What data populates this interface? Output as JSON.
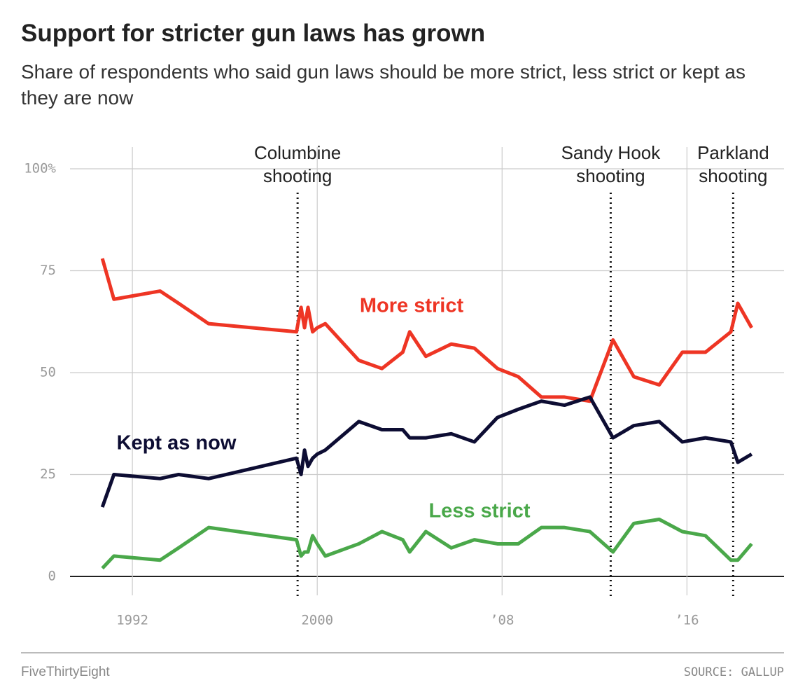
{
  "chart_data": {
    "type": "line",
    "title": "Support for stricter gun laws has grown",
    "subtitle": "Share of respondents who said gun laws should be more strict, less strict or kept as they are now",
    "x": [
      1990.7,
      1991.2,
      1993.2,
      1994.0,
      1995.3,
      1999.1,
      1999.3,
      1999.45,
      1999.6,
      1999.8,
      2000.0,
      2000.35,
      2001.8,
      2002.8,
      2003.7,
      2004.0,
      2004.7,
      2005.8,
      2006.8,
      2007.8,
      2008.7,
      2009.7,
      2010.7,
      2011.8,
      2012.8,
      2013.7,
      2014.8,
      2015.8,
      2016.8,
      2017.9,
      2018.2,
      2018.8
    ],
    "series": [
      {
        "name": "More strict",
        "color": "#ee3524",
        "values": [
          78,
          68,
          70,
          67,
          62,
          60,
          66,
          61,
          66,
          60,
          61,
          62,
          53,
          51,
          55,
          60,
          54,
          57,
          56,
          51,
          49,
          44,
          44,
          43,
          58,
          49,
          47,
          55,
          55,
          60,
          67,
          61
        ]
      },
      {
        "name": "Kept as now",
        "color": "#0d0d33",
        "values": [
          17,
          25,
          24,
          25,
          24,
          29,
          25,
          31,
          27,
          29,
          30,
          31,
          38,
          36,
          36,
          34,
          34,
          35,
          33,
          39,
          41,
          43,
          42,
          44,
          34,
          37,
          38,
          33,
          34,
          33,
          28,
          30
        ]
      },
      {
        "name": "Less strict",
        "color": "#4aa84a",
        "values": [
          2,
          5,
          4,
          7,
          12,
          9,
          5,
          6,
          6,
          10,
          8,
          5,
          8,
          11,
          9,
          6,
          11,
          7,
          9,
          8,
          8,
          12,
          12,
          11,
          6,
          13,
          14,
          11,
          10,
          4,
          4,
          8
        ]
      }
    ],
    "xlim": [
      1989.3,
      2020.2
    ],
    "ylim": [
      0,
      100
    ],
    "xticks": [
      1992,
      2000,
      {
        "value": 2008,
        "label": "’08"
      },
      {
        "value": 2016,
        "label": "’16"
      }
    ],
    "yticks": [
      0,
      25,
      50,
      75,
      {
        "value": 100,
        "label": "100%"
      }
    ],
    "grid": true,
    "events": [
      {
        "x": 1999.15,
        "label": [
          "Columbine",
          "shooting"
        ]
      },
      {
        "x": 2012.7,
        "label": [
          "Sandy Hook",
          "shooting"
        ]
      },
      {
        "x": 2018.0,
        "label": [
          "Parkland",
          "shooting"
        ]
      }
    ]
  },
  "footer": {
    "brand": "FiveThirtyEight",
    "source": "SOURCE: GALLUP"
  }
}
